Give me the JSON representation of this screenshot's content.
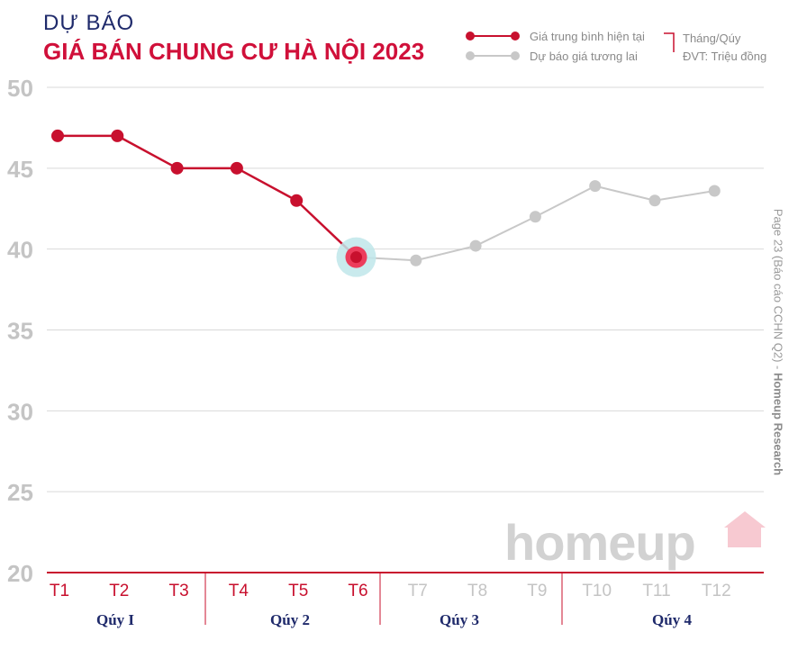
{
  "header": {
    "subtitle": "DỰ BÁO",
    "title": "GIÁ BÁN CHUNG CƯ HÀ NỘI 2023"
  },
  "legend": {
    "current": "Giá trung bình hiện tại",
    "forecast": "Dự báo giá tương lai",
    "axis_note": "Tháng/Qúy",
    "unit": "ĐVT: Triệu đồng"
  },
  "watermark": "homeup",
  "source": {
    "prefix": "Page 23 (Báo cáo CCHN Q2) - ",
    "brand": "Homeup Research"
  },
  "colors": {
    "current": "#c8102e",
    "forecast": "#c8c8c8",
    "highlight_ring": "#bfe6ea",
    "highlight_point": "#ec3d5c",
    "quarter_label": "#1f2a6b"
  },
  "chart_data": {
    "type": "line",
    "categories": [
      "T1",
      "T2",
      "T3",
      "T4",
      "T5",
      "T6",
      "T7",
      "T8",
      "T9",
      "T10",
      "T11",
      "T12"
    ],
    "quarters": [
      {
        "label": "Qúy I",
        "months": [
          "T1",
          "T2",
          "T3"
        ]
      },
      {
        "label": "Qúy 2",
        "months": [
          "T4",
          "T5",
          "T6"
        ]
      },
      {
        "label": "Qúy 3",
        "months": [
          "T7",
          "T8",
          "T9"
        ]
      },
      {
        "label": "Qúy 4",
        "months": [
          "T10",
          "T11",
          "T12"
        ]
      }
    ],
    "series": [
      {
        "name": "Giá trung bình hiện tại",
        "x": [
          "T1",
          "T2",
          "T3",
          "T4",
          "T5",
          "T6"
        ],
        "values": [
          47,
          47,
          45,
          45,
          43,
          39.5
        ]
      },
      {
        "name": "Dự báo giá tương lai",
        "x": [
          "T6",
          "T7",
          "T8",
          "T9",
          "T10",
          "T11",
          "T12"
        ],
        "values": [
          39.5,
          39.3,
          40.2,
          42,
          43.9,
          43,
          43.6
        ]
      }
    ],
    "highlight": {
      "x": "T6",
      "value": 39.5
    },
    "y_ticks": [
      20,
      25,
      30,
      35,
      40,
      45,
      50
    ],
    "ylim": [
      20,
      50
    ],
    "grid": true,
    "legend_position": "top-right"
  }
}
